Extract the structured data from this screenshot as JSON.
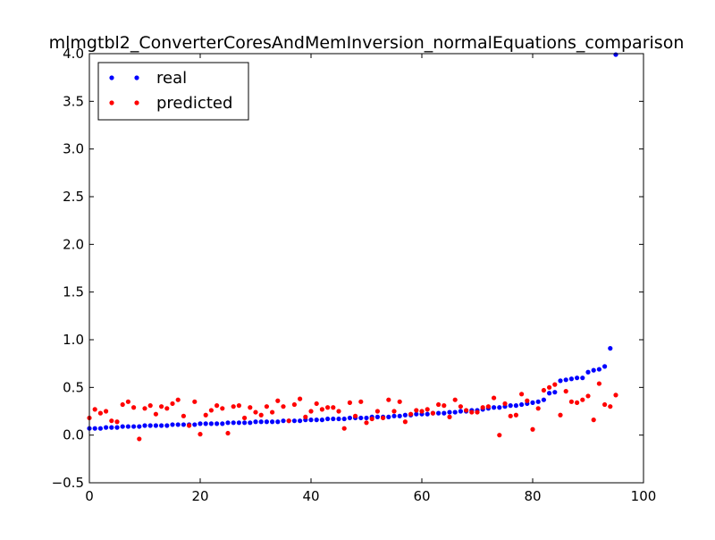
{
  "chart_data": {
    "type": "scatter",
    "title": "mlmgtbl2_ConverterCoresAndMemInversion_normalEquations_comparison",
    "xlabel": "",
    "ylabel": "",
    "xlim": [
      0,
      100
    ],
    "ylim": [
      -0.5,
      4.0
    ],
    "xticks": [
      0,
      20,
      40,
      60,
      80,
      100
    ],
    "xtick_labels": [
      "0",
      "20",
      "40",
      "60",
      "80",
      "100"
    ],
    "yticks": [
      -0.5,
      0.0,
      0.5,
      1.0,
      1.5,
      2.0,
      2.5,
      3.0,
      3.5,
      4.0
    ],
    "ytick_labels": [
      "−0.5",
      "0.0",
      "0.5",
      "1.0",
      "1.5",
      "2.0",
      "2.5",
      "3.0",
      "3.5",
      "4.0"
    ],
    "grid": false,
    "legend_position": "top-left",
    "series": [
      {
        "name": "real",
        "color": "#0000ff",
        "x": [
          0,
          1,
          2,
          3,
          4,
          5,
          6,
          7,
          8,
          9,
          10,
          11,
          12,
          13,
          14,
          15,
          16,
          17,
          18,
          19,
          20,
          21,
          22,
          23,
          24,
          25,
          26,
          27,
          28,
          29,
          30,
          31,
          32,
          33,
          34,
          35,
          36,
          37,
          38,
          39,
          40,
          41,
          42,
          43,
          44,
          45,
          46,
          47,
          48,
          49,
          50,
          51,
          52,
          53,
          54,
          55,
          56,
          57,
          58,
          59,
          60,
          61,
          62,
          63,
          64,
          65,
          66,
          67,
          68,
          69,
          70,
          71,
          72,
          73,
          74,
          75,
          76,
          77,
          78,
          79,
          80,
          81,
          82,
          83,
          84,
          85,
          86,
          87,
          88,
          89,
          90,
          91,
          92,
          93,
          94,
          95
        ],
        "y": [
          0.07,
          0.07,
          0.07,
          0.08,
          0.08,
          0.08,
          0.09,
          0.09,
          0.09,
          0.09,
          0.1,
          0.1,
          0.1,
          0.1,
          0.1,
          0.11,
          0.11,
          0.11,
          0.11,
          0.11,
          0.12,
          0.12,
          0.12,
          0.12,
          0.12,
          0.13,
          0.13,
          0.13,
          0.13,
          0.13,
          0.14,
          0.14,
          0.14,
          0.14,
          0.14,
          0.15,
          0.15,
          0.15,
          0.15,
          0.16,
          0.16,
          0.16,
          0.16,
          0.17,
          0.17,
          0.17,
          0.17,
          0.18,
          0.18,
          0.18,
          0.18,
          0.19,
          0.19,
          0.19,
          0.19,
          0.2,
          0.2,
          0.21,
          0.21,
          0.22,
          0.22,
          0.22,
          0.23,
          0.23,
          0.23,
          0.24,
          0.24,
          0.25,
          0.25,
          0.26,
          0.26,
          0.27,
          0.28,
          0.29,
          0.29,
          0.3,
          0.31,
          0.31,
          0.32,
          0.33,
          0.34,
          0.35,
          0.37,
          0.44,
          0.45,
          0.57,
          0.58,
          0.59,
          0.6,
          0.6,
          0.66,
          0.68,
          0.69,
          0.72,
          0.91,
          3.99
        ]
      },
      {
        "name": "predicted",
        "color": "#ff0000",
        "x": [
          0,
          1,
          2,
          3,
          4,
          5,
          6,
          7,
          8,
          9,
          10,
          11,
          12,
          13,
          14,
          15,
          16,
          17,
          18,
          19,
          20,
          21,
          22,
          23,
          24,
          25,
          26,
          27,
          28,
          29,
          30,
          31,
          32,
          33,
          34,
          35,
          36,
          37,
          38,
          39,
          40,
          41,
          42,
          43,
          44,
          45,
          46,
          47,
          48,
          49,
          50,
          51,
          52,
          53,
          54,
          55,
          56,
          57,
          58,
          59,
          60,
          61,
          62,
          63,
          64,
          65,
          66,
          67,
          68,
          69,
          70,
          71,
          72,
          73,
          74,
          75,
          76,
          77,
          78,
          79,
          80,
          81,
          82,
          83,
          84,
          85,
          86,
          87,
          88,
          89,
          90,
          91,
          92,
          93,
          94,
          95
        ],
        "y": [
          0.18,
          0.27,
          0.23,
          0.25,
          0.15,
          0.14,
          0.32,
          0.35,
          0.29,
          -0.04,
          0.28,
          0.31,
          0.22,
          0.3,
          0.28,
          0.33,
          0.37,
          0.2,
          0.1,
          0.35,
          0.01,
          0.21,
          0.26,
          0.31,
          0.28,
          0.02,
          0.3,
          0.31,
          0.18,
          0.29,
          0.24,
          0.21,
          0.3,
          0.24,
          0.36,
          0.3,
          0.15,
          0.32,
          0.38,
          0.19,
          0.25,
          0.33,
          0.27,
          0.29,
          0.29,
          0.25,
          0.07,
          0.34,
          0.2,
          0.35,
          0.13,
          0.17,
          0.25,
          0.18,
          0.37,
          0.25,
          0.35,
          0.14,
          0.22,
          0.26,
          0.25,
          0.27,
          0.23,
          0.32,
          0.31,
          0.19,
          0.37,
          0.3,
          0.26,
          0.24,
          0.24,
          0.29,
          0.3,
          0.39,
          0.0,
          0.33,
          0.2,
          0.21,
          0.43,
          0.36,
          0.06,
          0.28,
          0.47,
          0.5,
          0.53,
          0.21,
          0.46,
          0.35,
          0.34,
          0.37,
          0.41,
          0.16,
          0.54,
          0.32,
          0.3,
          0.42
        ]
      }
    ]
  }
}
